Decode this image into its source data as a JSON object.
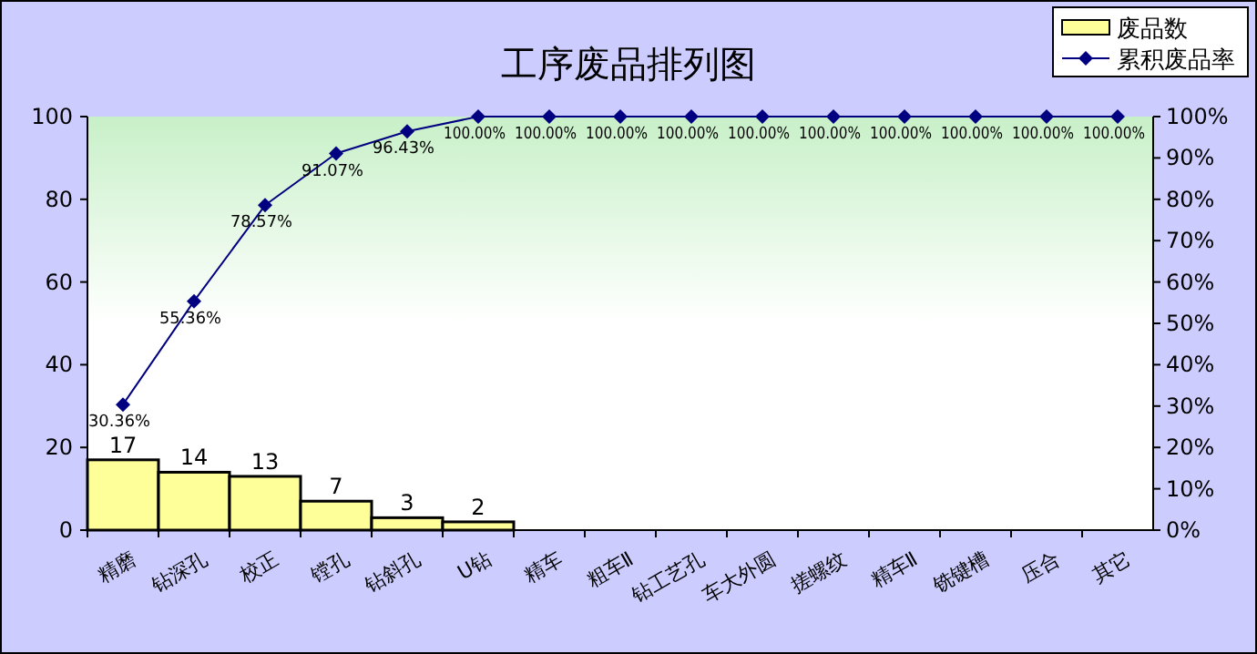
{
  "chart_data": {
    "type": "bar",
    "title": "工序废品排列图",
    "categories": [
      "精磨",
      "钻深孔",
      "校正",
      "镗孔",
      "钻斜孔",
      "U钻",
      "精车",
      "粗车Ⅱ",
      "钻工艺孔",
      "车大外圆",
      "搓螺纹",
      "精车Ⅱ",
      "铣键槽",
      "压合",
      "其它"
    ],
    "series": [
      {
        "name": "废品数",
        "type": "bar",
        "color": "#ffff99",
        "values": [
          17,
          14,
          13,
          7,
          3,
          2,
          0,
          0,
          0,
          0,
          0,
          0,
          0,
          0,
          0
        ],
        "value_labels": [
          "17",
          "14",
          "13",
          "7",
          "3",
          "2",
          null,
          null,
          null,
          null,
          null,
          null,
          null,
          null,
          null
        ]
      },
      {
        "name": "累积废品率",
        "type": "line",
        "axis": "y2",
        "color": "#000080",
        "values": [
          30.36,
          55.36,
          78.57,
          91.07,
          96.43,
          100,
          100,
          100,
          100,
          100,
          100,
          100,
          100,
          100,
          100
        ],
        "value_labels": [
          "30.36%",
          "55.36%",
          "78.57%",
          "91.07%",
          "96.43%",
          "100.00%",
          "100.00%",
          "100.00%",
          "100.00%",
          "100.00%",
          "100.00%",
          "100.00%",
          "100.00%",
          "100.00%",
          "100.00%"
        ]
      }
    ],
    "ylim": [
      0,
      100
    ],
    "yticks": [
      0,
      20,
      40,
      60,
      80,
      100
    ],
    "y2lim": [
      0,
      100
    ],
    "y2ticks": [
      {
        "value": 0,
        "label": "0%"
      },
      {
        "value": 10,
        "label": "10%"
      },
      {
        "value": 20,
        "label": "20%"
      },
      {
        "value": 30,
        "label": "30%"
      },
      {
        "value": 40,
        "label": "40%"
      },
      {
        "value": 50,
        "label": "50%"
      },
      {
        "value": 60,
        "label": "60%"
      },
      {
        "value": 70,
        "label": "70%"
      },
      {
        "value": 80,
        "label": "80%"
      },
      {
        "value": 90,
        "label": "90%"
      },
      {
        "value": 100,
        "label": "100%"
      }
    ],
    "legend": "top right",
    "marker": "diamond"
  }
}
